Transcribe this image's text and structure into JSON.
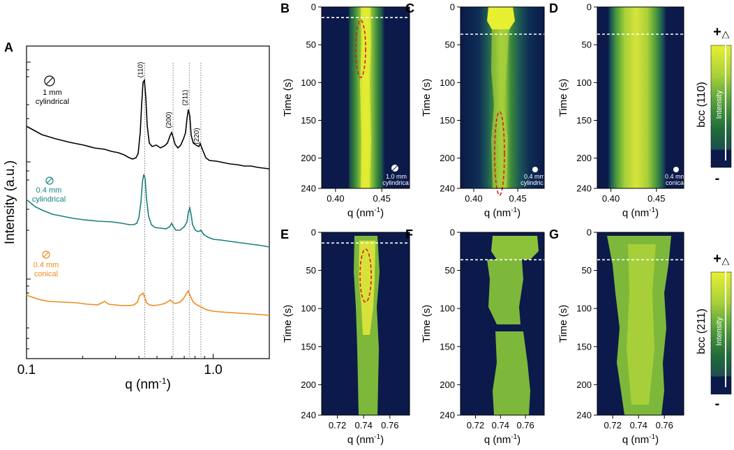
{
  "chart_data": [
    {
      "panel": "A",
      "type": "line",
      "xscale": "log",
      "xlabel": "q (nm",
      "xlabel_sup": "-1",
      "xlabel_close": ")",
      "ylabel": "Intensity (a.u.)",
      "xticks": [
        "0.1",
        "1.0"
      ],
      "xlim": [
        0.1,
        2.0
      ],
      "peak_labels": [
        {
          "label": "(110)",
          "q": 0.43
        },
        {
          "label": "(200)",
          "q": 0.61
        },
        {
          "label": "(211)",
          "q": 0.745
        },
        {
          "label": "(220)",
          "q": 0.86
        }
      ],
      "series": [
        {
          "name": "1 mm cylindrical",
          "line1": "1 mm",
          "line2": "cylindrical",
          "color": "#000000"
        },
        {
          "name": "0.4 mm cylindrical",
          "line1": "0.4 mm",
          "line2": "cylindrical",
          "color": "#1a7f7f"
        },
        {
          "name": "0.4 mm conical",
          "line1": "0.4 mm",
          "line2": "conical",
          "color": "#f08a1a"
        }
      ]
    },
    {
      "panel": "B",
      "type": "heatmap",
      "reflection": "bcc (110)",
      "ylabel": "Time (s)",
      "xlabel": "q (nm",
      "yticks": [
        "0",
        "50",
        "100",
        "150",
        "200",
        "240"
      ],
      "xticks": [
        "0.40",
        "0.45"
      ],
      "ylim": [
        0,
        240
      ],
      "xlim": [
        0.385,
        0.48
      ],
      "dashed_line_time": 14,
      "inset_line1": "1.0 mm",
      "inset_line2": "cylindrical"
    },
    {
      "panel": "C",
      "type": "heatmap",
      "reflection": "bcc (110)",
      "ylabel": "Time (s)",
      "xlabel": "q (nm",
      "yticks": [
        "0",
        "50",
        "100",
        "150",
        "200",
        "240"
      ],
      "xticks": [
        "0.40",
        "0.45"
      ],
      "ylim": [
        0,
        240
      ],
      "xlim": [
        0.385,
        0.48
      ],
      "dashed_line_time": 36,
      "inset_line1": "0.4 mm",
      "inset_line2": "cylindrical"
    },
    {
      "panel": "D",
      "type": "heatmap",
      "reflection": "bcc (110)",
      "ylabel": "Time (s)",
      "xlabel": "q (nm",
      "yticks": [
        "0",
        "50",
        "100",
        "150",
        "200",
        "240"
      ],
      "xticks": [
        "0.40",
        "0.45"
      ],
      "ylim": [
        0,
        240
      ],
      "xlim": [
        0.385,
        0.48
      ],
      "dashed_line_time": 36,
      "inset_line1": "0.4 mm",
      "inset_line2": "conical"
    },
    {
      "panel": "E",
      "type": "heatmap",
      "reflection": "bcc (211)",
      "ylabel": "Time (s)",
      "xlabel": "q (nm",
      "yticks": [
        "0",
        "50",
        "100",
        "150",
        "200",
        "240"
      ],
      "xticks": [
        "0.72",
        "0.74",
        "0.76"
      ],
      "ylim": [
        0,
        240
      ],
      "xlim": [
        0.708,
        0.775
      ],
      "dashed_line_time": 14
    },
    {
      "panel": "F",
      "type": "heatmap",
      "reflection": "bcc (211)",
      "ylabel": "Time (s)",
      "xlabel": "q (nm",
      "yticks": [
        "0",
        "50",
        "100",
        "150",
        "200",
        "240"
      ],
      "xticks": [
        "0.72",
        "0.74",
        "0.76"
      ],
      "ylim": [
        0,
        240
      ],
      "xlim": [
        0.708,
        0.775
      ],
      "dashed_line_time": 36
    },
    {
      "panel": "G",
      "type": "heatmap",
      "reflection": "bcc (211)",
      "ylabel": "Time (s)",
      "xlabel": "q (nm",
      "yticks": [
        "0",
        "50",
        "100",
        "150",
        "200",
        "240"
      ],
      "xticks": [
        "0.72",
        "0.74",
        "0.76"
      ],
      "ylim": [
        0,
        240
      ],
      "xlim": [
        0.708,
        0.775
      ],
      "dashed_line_time": 36
    }
  ],
  "colorbars": [
    {
      "title": "bcc (110)",
      "plus": "+",
      "minus": "-",
      "label": "Intensity"
    },
    {
      "title": "bcc (211)",
      "plus": "+",
      "minus": "-",
      "label": "Intensity"
    }
  ],
  "colors": {
    "background": "#0b1a4a",
    "teal": "#1a7f7f",
    "orange": "#f08a1a",
    "ellipse": "#e0192a"
  }
}
